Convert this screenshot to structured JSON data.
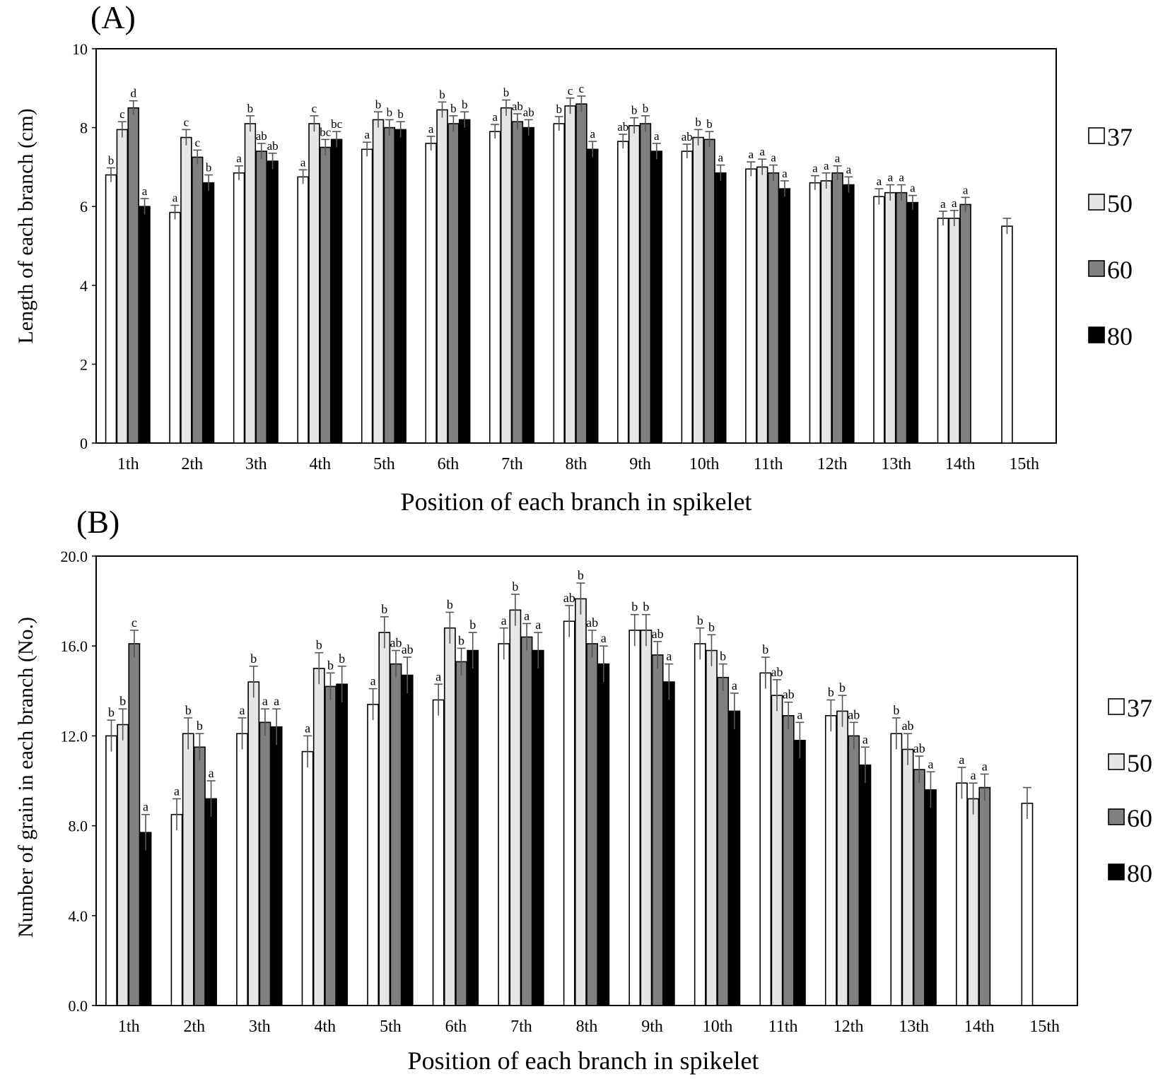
{
  "colors": {
    "s37": "#ffffff",
    "s50": "#e6e6e6",
    "s60": "#808080",
    "s80": "#000000"
  },
  "chart_data": [
    {
      "type": "bar",
      "panel_label": "(A)",
      "categories": [
        "1th",
        "2th",
        "3th",
        "4th",
        "5th",
        "6th",
        "7th",
        "8th",
        "9th",
        "10th",
        "11th",
        "12th",
        "13th",
        "14th",
        "15th"
      ],
      "xlabel": "Position of each branch in spikelet",
      "ylabel": "Length of each branch (cm)",
      "ylim": [
        0,
        10
      ],
      "yticks": [
        "0",
        "2",
        "4",
        "6",
        "8",
        "10"
      ],
      "ytick_values": [
        0,
        2,
        4,
        6,
        8,
        10
      ],
      "legend_position": "right",
      "series": [
        {
          "name": "37",
          "values": [
            6.8,
            5.85,
            6.85,
            6.75,
            7.45,
            7.6,
            7.9,
            8.1,
            7.65,
            7.4,
            6.95,
            6.6,
            6.25,
            5.7,
            5.5
          ],
          "errors": [
            0.18,
            0.18,
            0.18,
            0.18,
            0.18,
            0.18,
            0.18,
            0.18,
            0.18,
            0.18,
            0.18,
            0.18,
            0.2,
            0.18,
            0.2
          ],
          "labels": [
            "b",
            "a",
            "a",
            "a",
            "a",
            "a",
            "a",
            "b",
            "ab",
            "ab",
            "a",
            "a",
            "a",
            "a",
            ""
          ]
        },
        {
          "name": "50",
          "values": [
            7.95,
            7.75,
            8.1,
            8.1,
            8.2,
            8.45,
            8.5,
            8.55,
            8.05,
            7.75,
            7.0,
            6.65,
            6.35,
            5.7,
            null
          ],
          "errors": [
            0.2,
            0.2,
            0.2,
            0.2,
            0.2,
            0.2,
            0.2,
            0.2,
            0.2,
            0.2,
            0.2,
            0.2,
            0.2,
            0.2,
            null
          ],
          "labels": [
            "c",
            "c",
            "b",
            "c",
            "b",
            "b",
            "b",
            "c",
            "b",
            "b",
            "a",
            "a",
            "a",
            "a",
            ""
          ]
        },
        {
          "name": "60",
          "values": [
            8.5,
            7.25,
            7.4,
            7.5,
            8.0,
            8.1,
            8.15,
            8.6,
            8.1,
            7.7,
            6.85,
            6.85,
            6.35,
            6.05,
            null
          ],
          "errors": [
            0.18,
            0.18,
            0.2,
            0.2,
            0.2,
            0.2,
            0.2,
            0.2,
            0.2,
            0.2,
            0.2,
            0.18,
            0.2,
            0.18,
            null
          ],
          "labels": [
            "d",
            "c",
            "ab",
            "bc",
            "b",
            "b",
            "ab",
            "c",
            "b",
            "b",
            "a",
            "a",
            "a",
            "a",
            ""
          ]
        },
        {
          "name": "80",
          "values": [
            6.0,
            6.6,
            7.15,
            7.7,
            7.95,
            8.2,
            8.0,
            7.45,
            7.4,
            6.85,
            6.45,
            6.55,
            6.1,
            null,
            null
          ],
          "errors": [
            0.2,
            0.2,
            0.2,
            0.2,
            0.2,
            0.2,
            0.2,
            0.2,
            0.2,
            0.2,
            0.2,
            0.2,
            0.18,
            null,
            null
          ],
          "labels": [
            "a",
            "b",
            "ab",
            "bc",
            "b",
            "b",
            "ab",
            "a",
            "a",
            "a",
            "a",
            "a",
            "a",
            "",
            ""
          ]
        }
      ]
    },
    {
      "type": "bar",
      "panel_label": "(B)",
      "categories": [
        "1th",
        "2th",
        "3th",
        "4th",
        "5th",
        "6th",
        "7th",
        "8th",
        "9th",
        "10th",
        "11th",
        "12th",
        "13th",
        "14th",
        "15th"
      ],
      "xlabel": "Position of each branch in spikelet",
      "ylabel": "Number of grain in each branch (No.)",
      "ylim": [
        0,
        20
      ],
      "yticks": [
        "0.0",
        "4.0",
        "8.0",
        "12.0",
        "16.0",
        "20.0"
      ],
      "ytick_values": [
        0,
        4,
        8,
        12,
        16,
        20
      ],
      "legend_position": "right",
      "series": [
        {
          "name": "37",
          "values": [
            12.0,
            8.5,
            12.1,
            11.3,
            13.4,
            13.6,
            16.1,
            17.1,
            16.7,
            16.1,
            14.8,
            12.9,
            12.1,
            9.9,
            9.0
          ],
          "errors": [
            0.7,
            0.7,
            0.7,
            0.7,
            0.7,
            0.7,
            0.7,
            0.7,
            0.7,
            0.7,
            0.7,
            0.7,
            0.7,
            0.7,
            0.7
          ],
          "labels": [
            "b",
            "a",
            "a",
            "a",
            "a",
            "a",
            "a",
            "ab",
            "b",
            "b",
            "b",
            "b",
            "b",
            "a",
            ""
          ]
        },
        {
          "name": "50",
          "values": [
            12.5,
            12.1,
            14.4,
            15.0,
            16.6,
            16.8,
            17.6,
            18.1,
            16.7,
            15.8,
            13.8,
            13.1,
            11.4,
            9.2,
            null
          ],
          "errors": [
            0.7,
            0.7,
            0.7,
            0.7,
            0.7,
            0.7,
            0.7,
            0.7,
            0.7,
            0.7,
            0.7,
            0.7,
            0.7,
            0.7,
            null
          ],
          "labels": [
            "b",
            "b",
            "b",
            "b",
            "b",
            "b",
            "b",
            "b",
            "b",
            "b",
            "ab",
            "b",
            "ab",
            "a",
            ""
          ]
        },
        {
          "name": "60",
          "values": [
            16.1,
            11.5,
            12.6,
            14.2,
            15.2,
            15.3,
            16.4,
            16.1,
            15.6,
            14.6,
            12.9,
            12.0,
            10.5,
            9.7,
            null
          ],
          "errors": [
            0.6,
            0.6,
            0.6,
            0.6,
            0.6,
            0.6,
            0.6,
            0.6,
            0.6,
            0.6,
            0.6,
            0.6,
            0.6,
            0.6,
            null
          ],
          "labels": [
            "c",
            "b",
            "a",
            "b",
            "ab",
            "b",
            "a",
            "ab",
            "ab",
            "b",
            "ab",
            "ab",
            "ab",
            "a",
            ""
          ]
        },
        {
          "name": "80",
          "values": [
            7.7,
            9.2,
            12.4,
            14.3,
            14.7,
            15.8,
            15.8,
            15.2,
            14.4,
            13.1,
            11.8,
            10.7,
            9.6,
            null,
            null
          ],
          "errors": [
            0.8,
            0.8,
            0.8,
            0.8,
            0.8,
            0.8,
            0.8,
            0.8,
            0.8,
            0.8,
            0.8,
            0.8,
            0.8,
            null,
            null
          ],
          "labels": [
            "a",
            "a",
            "a",
            "b",
            "ab",
            "b",
            "a",
            "a",
            "a",
            "a",
            "a",
            "a",
            "a",
            "",
            ""
          ]
        }
      ]
    }
  ]
}
